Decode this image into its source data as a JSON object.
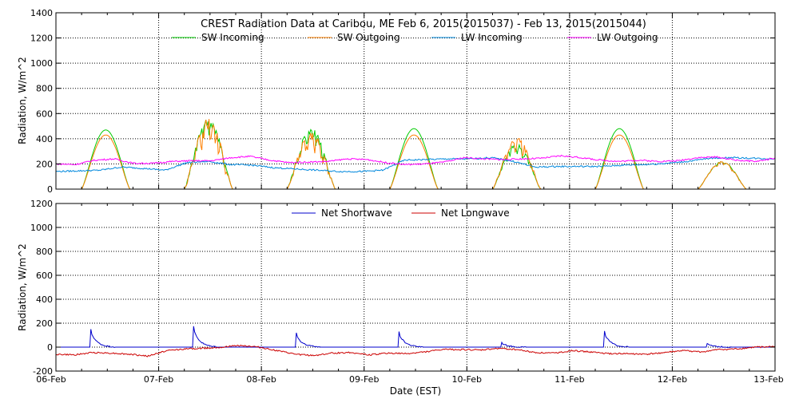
{
  "chart_data": [
    {
      "type": "line",
      "title": "CREST Radiation Data at Caribou, ME   Feb  6, 2015(2015037) - Feb 13, 2015(2015044)",
      "xlabel": "",
      "ylabel": "Radiation, W/m^2",
      "xlim": [
        "06-Feb",
        "13-Feb"
      ],
      "ylim": [
        0,
        1400
      ],
      "yticks": [
        "0",
        "200",
        "400",
        "600",
        "800",
        "1000",
        "1200",
        "1400"
      ],
      "grid": true,
      "legend_position": "top-center",
      "series": [
        {
          "name": "SW Incoming",
          "color": "#00cc00",
          "kind": "sw",
          "peaks": [
            470,
            560,
            490,
            480,
            360,
            480,
            220
          ],
          "noise": [
            0,
            0.3,
            0.35,
            0,
            0.3,
            0,
            0.1
          ]
        },
        {
          "name": "SW Outgoing",
          "color": "#ff7f00",
          "kind": "sw",
          "peaks": [
            430,
            560,
            460,
            430,
            410,
            430,
            220
          ],
          "noise": [
            0,
            0.45,
            0.4,
            0,
            0.35,
            0,
            0.15
          ]
        },
        {
          "name": "LW Incoming",
          "color": "#0088dd",
          "kind": "lw",
          "values": [
            140,
            145,
            150,
            175,
            165,
            150,
            210,
            220,
            195,
            190,
            170,
            160,
            150,
            140,
            140,
            150,
            230,
            235,
            240,
            240,
            250,
            220,
            175,
            180,
            180,
            180,
            190,
            195,
            205,
            220,
            245,
            250,
            245,
            240
          ]
        },
        {
          "name": "LW Outgoing",
          "color": "#ff00ff",
          "kind": "lw",
          "values": [
            200,
            195,
            230,
            240,
            205,
            205,
            220,
            225,
            225,
            250,
            260,
            230,
            210,
            215,
            220,
            240,
            235,
            210,
            195,
            200,
            215,
            250,
            240,
            235,
            240,
            245,
            265,
            250,
            230,
            220,
            230,
            220,
            225,
            250,
            255,
            230,
            220,
            245
          ]
        }
      ]
    },
    {
      "type": "line",
      "title": "",
      "xlabel": "Date (EST)",
      "ylabel": "Radiation, W/m^2",
      "xlim": [
        "06-Feb",
        "13-Feb"
      ],
      "ylim": [
        -200,
        1200
      ],
      "yticks": [
        "-200",
        "0",
        "200",
        "400",
        "600",
        "800",
        "1000",
        "1200"
      ],
      "xticks": [
        "06-Feb",
        "07-Feb",
        "08-Feb",
        "09-Feb",
        "10-Feb",
        "11-Feb",
        "12-Feb",
        "13-Feb"
      ],
      "grid": true,
      "legend_position": "top-center",
      "series": [
        {
          "name": "Net Shortwave",
          "color": "#0000cc",
          "kind": "net_sw",
          "peaks": [
            150,
            175,
            120,
            130,
            40,
            135,
            30
          ]
        },
        {
          "name": "Net Longwave",
          "color": "#cc0000",
          "kind": "net_lw",
          "values": [
            -60,
            -65,
            -45,
            -50,
            -60,
            -75,
            -30,
            -15,
            -10,
            0,
            15,
            0,
            -30,
            -60,
            -70,
            -50,
            -45,
            -65,
            -50,
            -55,
            -40,
            -20,
            -20,
            -25,
            -10,
            -20,
            -45,
            -50,
            -30,
            -40,
            -55,
            -55,
            -60,
            -45,
            -30,
            -40,
            -20,
            -15,
            0,
            5
          ]
        }
      ]
    }
  ]
}
